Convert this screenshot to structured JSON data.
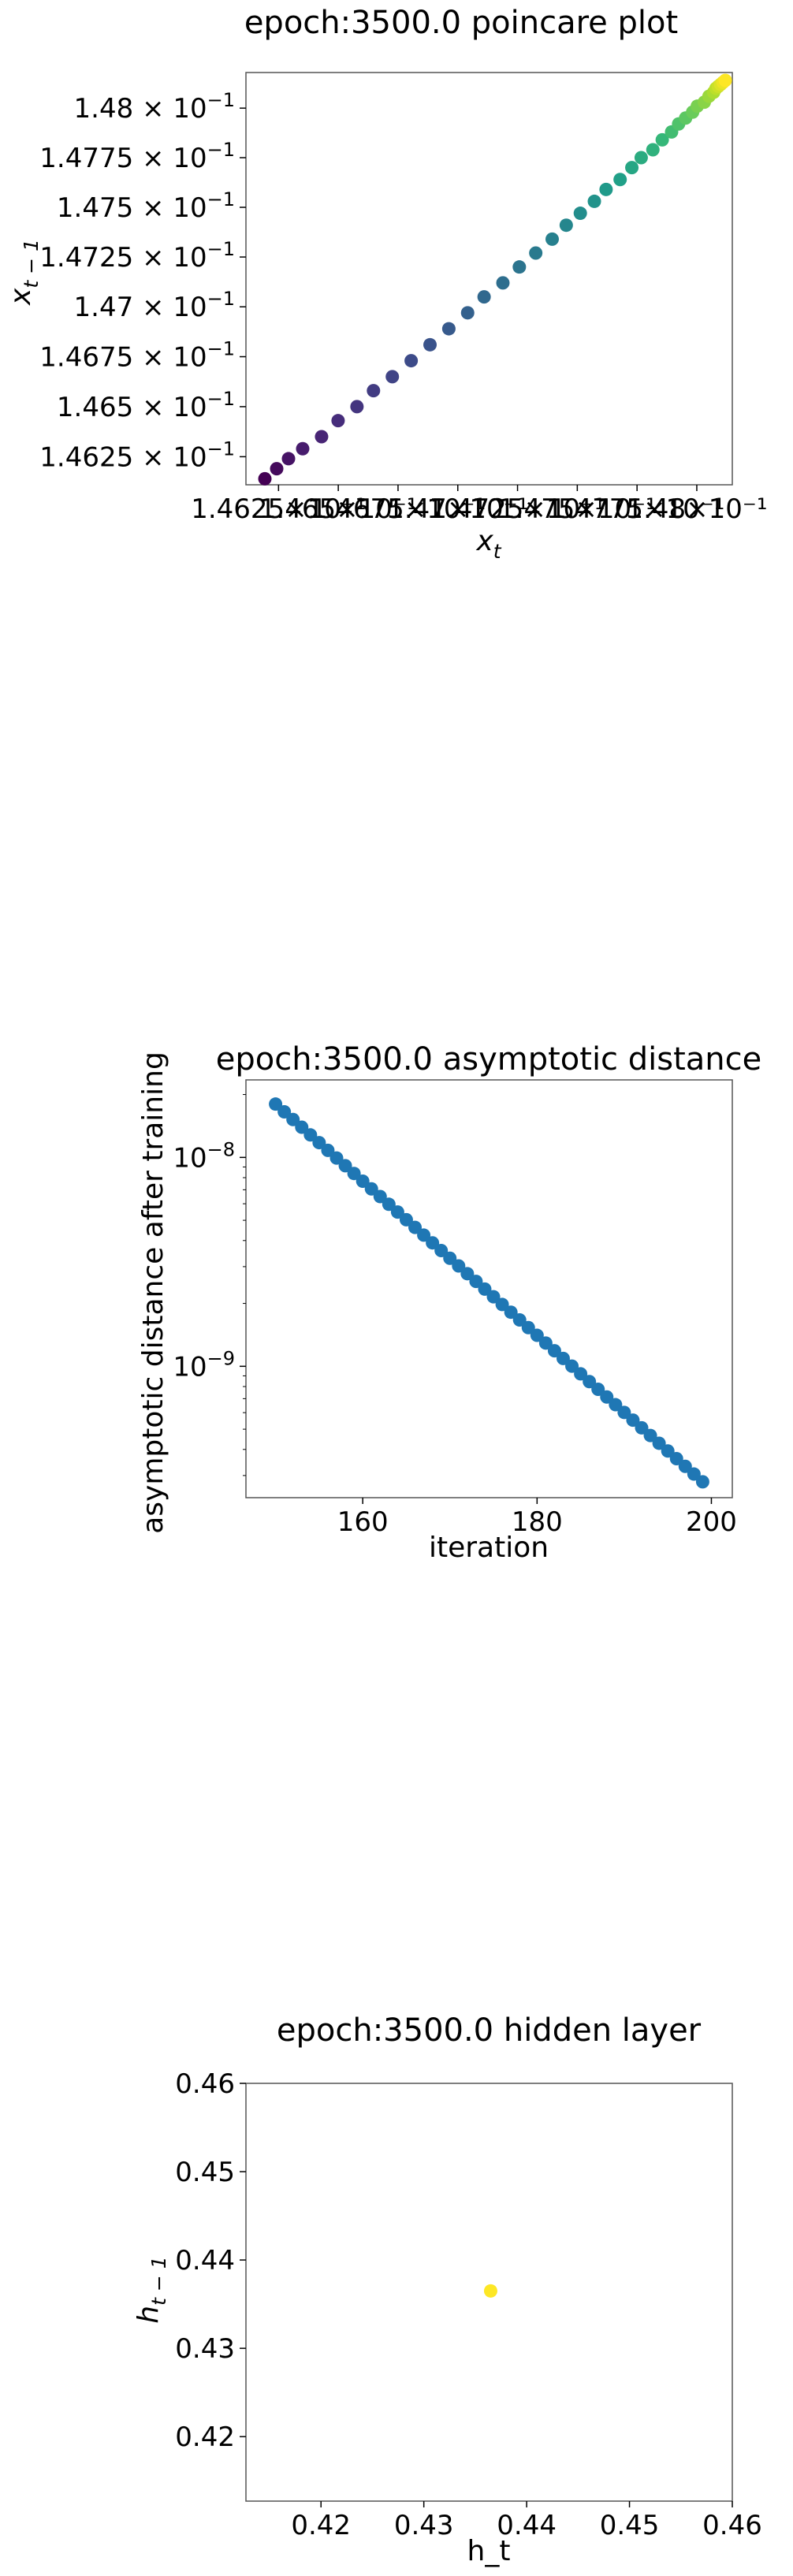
{
  "colors": {
    "viridis_start": "#440154",
    "viridis_end": "#fde725",
    "series": "#1f77b4",
    "hidden_point": "#fde725",
    "axis": "#000000",
    "frame": "#555555"
  },
  "chart_data": [
    {
      "type": "scatter",
      "title": "epoch:3500.0 poincare plot",
      "xlabel": "x_t",
      "ylabel": "x_{t−1}",
      "log_scale": true,
      "colormap": "viridis",
      "grid": false,
      "xlim": [
        0.14611,
        0.14818
      ],
      "ylim": [
        0.14611,
        0.14818
      ],
      "x_tick_labels": [
        "1.4625×10⁻¹",
        "1.465×10⁻¹",
        "1.4675×10⁻¹",
        "1.47×10⁻¹",
        "1.4725×10⁻¹",
        "1.475×10⁻¹",
        "1.4775×10⁻¹",
        "1.48×10⁻¹"
      ],
      "y_ticks": [
        {
          "value": 0.14625,
          "mantissa": "1.4625"
        },
        {
          "value": 0.1465,
          "mantissa": "1.465"
        },
        {
          "value": 0.14675,
          "mantissa": "1.4675"
        },
        {
          "value": 0.147,
          "mantissa": "1.47"
        },
        {
          "value": 0.14725,
          "mantissa": "1.4725"
        },
        {
          "value": 0.1475,
          "mantissa": "1.475"
        },
        {
          "value": 0.14775,
          "mantissa": "1.4775"
        },
        {
          "value": 0.148,
          "mantissa": "1.48"
        }
      ],
      "tick_base": "10",
      "tick_exponent": "−1",
      "points_x": [
        0.14619,
        0.14624,
        0.14629,
        0.14635,
        0.14643,
        0.1465,
        0.14658,
        0.14665,
        0.14673,
        0.14681,
        0.14689,
        0.14697,
        0.14705,
        0.14712,
        0.1472,
        0.14727,
        0.14734,
        0.14741,
        0.14747,
        0.14753,
        0.14759,
        0.14764,
        0.1477,
        0.14775,
        0.14779,
        0.14784,
        0.14788,
        0.14792,
        0.14795,
        0.14798,
        0.14801,
        0.14803,
        0.14806,
        0.14808,
        0.1481,
        0.14811,
        0.14812,
        0.14813,
        0.14814,
        0.14815
      ],
      "points_y": [
        0.14614,
        0.14619,
        0.14624,
        0.14629,
        0.14635,
        0.14643,
        0.1465,
        0.14658,
        0.14665,
        0.14673,
        0.14681,
        0.14689,
        0.14697,
        0.14705,
        0.14712,
        0.1472,
        0.14727,
        0.14734,
        0.14741,
        0.14747,
        0.14753,
        0.14759,
        0.14764,
        0.1477,
        0.14775,
        0.14779,
        0.14784,
        0.14788,
        0.14792,
        0.14795,
        0.14798,
        0.14801,
        0.14803,
        0.14806,
        0.14808,
        0.1481,
        0.14811,
        0.14812,
        0.14813,
        0.14814
      ]
    },
    {
      "type": "scatter",
      "title": "epoch:3500.0 asymptotic distance",
      "xlabel": "iteration",
      "ylabel": "asymptotic distance after training",
      "y_scale": "log",
      "grid": false,
      "xlim": [
        146.6,
        202.4
      ],
      "ylim": [
        2.35e-10,
        2.35e-08
      ],
      "x_ticks": [
        160,
        180,
        200
      ],
      "y_ticks": [
        {
          "value": 1e-08,
          "base": "10",
          "exponent": "−8"
        },
        {
          "value": 1e-09,
          "base": "10",
          "exponent": "−9"
        }
      ],
      "x_start": 150,
      "x_end": 199,
      "y_start": 1.8e-08,
      "y_end": 2.8e-10
    },
    {
      "type": "scatter",
      "title": "epoch:3500.0 hidden layer",
      "xlabel": "h_t",
      "ylabel": "h_{t−1}",
      "grid": false,
      "xlim": [
        0.4127,
        0.46
      ],
      "ylim": [
        0.4127,
        0.46
      ],
      "x_ticks": [
        0.42,
        0.43,
        0.44,
        0.45,
        0.46
      ],
      "y_ticks": [
        0.42,
        0.43,
        0.44,
        0.45,
        0.46
      ],
      "points": [
        {
          "x": 0.4365,
          "y": 0.4365
        }
      ]
    }
  ]
}
